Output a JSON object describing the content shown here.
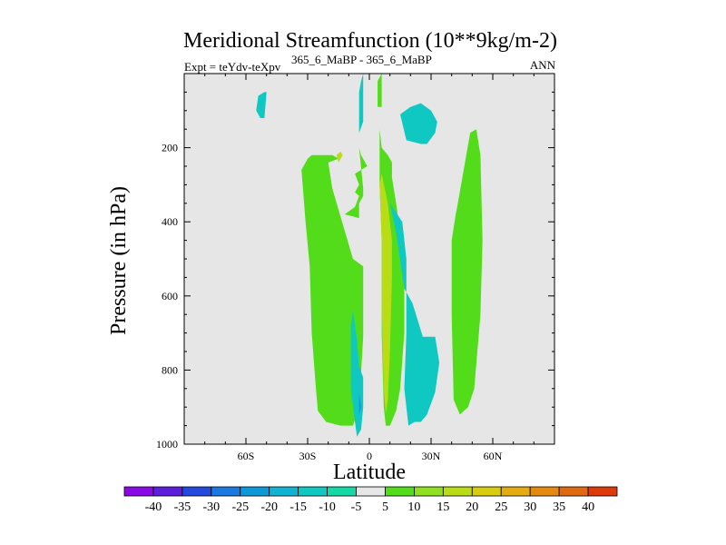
{
  "chart_data": {
    "type": "contour",
    "title": "Meridional Streamfunction (10**9kg/m-2)",
    "subtitle_left": "Expt = teYdv-teXpv",
    "subtitle_super": "365_6_MaBP - 365_6_MaBP",
    "subtitle_right": "ANN",
    "xlabel": "Latitude",
    "ylabel": "Pressure (in hPa)",
    "xlim": [
      -90,
      90
    ],
    "ylim": [
      1000,
      0
    ],
    "x_ticks": [
      {
        "value": -60,
        "label": "60S"
      },
      {
        "value": -30,
        "label": "30S"
      },
      {
        "value": 0,
        "label": "0"
      },
      {
        "value": 30,
        "label": "30N"
      },
      {
        "value": 60,
        "label": "60N"
      }
    ],
    "y_ticks": [
      {
        "value": 200,
        "label": "200"
      },
      {
        "value": 400,
        "label": "400"
      },
      {
        "value": 600,
        "label": "600"
      },
      {
        "value": 800,
        "label": "800"
      },
      {
        "value": 1000,
        "label": "1000"
      }
    ],
    "colorbar": {
      "labels": [
        "-40",
        "-35",
        "-30",
        "-25",
        "-20",
        "-15",
        "-10",
        "-5",
        "5",
        "10",
        "15",
        "20",
        "25",
        "30",
        "35",
        "40"
      ],
      "colors": [
        "#8a0ae6",
        "#5c1ed8",
        "#2348dc",
        "#1a78e0",
        "#0d98d8",
        "#10b4d2",
        "#10c8c2",
        "#16d8a4",
        "#e6e6e6",
        "#52dc1a",
        "#8ee020",
        "#b8dc16",
        "#d8cc10",
        "#e4ac10",
        "#e48a10",
        "#e06a12",
        "#dc3a0a"
      ]
    },
    "regions": [
      {
        "name": "sh-polar-cell",
        "level": "-10",
        "color": "#10c8c2",
        "poly": [
          [
            -54,
            -6
          ],
          [
            -51,
            -5
          ],
          [
            -50,
            -5
          ],
          [
            -51,
            -12
          ],
          [
            -53,
            -12
          ],
          [
            -55,
            -10
          ]
        ]
      },
      {
        "name": "sh-ferrel-cell",
        "level": "5",
        "color": "#52dc1a",
        "poly": [
          [
            -30,
            -23
          ],
          [
            -28,
            -22
          ],
          [
            -18,
            -22
          ],
          [
            -15,
            -23
          ],
          [
            -20,
            -24
          ],
          [
            -18,
            -31
          ],
          [
            -8,
            -50
          ],
          [
            -3,
            -52
          ],
          [
            -3,
            -71
          ],
          [
            -5,
            -90
          ],
          [
            -8,
            -95
          ],
          [
            -14,
            -95
          ],
          [
            -21,
            -94
          ],
          [
            -25,
            -91
          ],
          [
            -26,
            -85
          ],
          [
            -28,
            -70
          ],
          [
            -29,
            -52
          ],
          [
            -31,
            -40
          ],
          [
            -33,
            -26
          ]
        ]
      },
      {
        "name": "tropical-upper-cell",
        "level": "5",
        "color": "#52dc1a",
        "poly": [
          [
            -3,
            -31
          ],
          [
            -5,
            -20
          ],
          [
            -4,
            -22
          ],
          [
            -1,
            -25
          ],
          [
            -7,
            -27
          ],
          [
            -5,
            -30
          ],
          [
            -7,
            -32
          ],
          [
            -5,
            -33
          ],
          [
            -7,
            -36
          ],
          [
            -12,
            -38
          ],
          [
            -5,
            -39
          ],
          [
            -5,
            -35
          ],
          [
            -3,
            -33
          ]
        ]
      },
      {
        "name": "hadley-cell",
        "level": "5",
        "color": "#52dc1a",
        "poly": [
          [
            5,
            -15
          ],
          [
            6,
            -20
          ],
          [
            9,
            -22
          ],
          [
            11,
            -24
          ],
          [
            11,
            -28
          ],
          [
            13,
            -35
          ],
          [
            15,
            -43
          ],
          [
            17,
            -58
          ],
          [
            17,
            -70
          ],
          [
            15,
            -85
          ],
          [
            13,
            -91
          ],
          [
            10,
            -95
          ],
          [
            8,
            -95
          ],
          [
            7,
            -90
          ],
          [
            6,
            -70
          ],
          [
            6,
            -55
          ],
          [
            6,
            -45
          ],
          [
            5,
            -30
          ]
        ]
      },
      {
        "name": "hadley-core",
        "level": "15",
        "color": "#b8dc16",
        "poly": [
          [
            5,
            -30
          ],
          [
            6,
            -27
          ],
          [
            9,
            -35
          ],
          [
            11,
            -45
          ],
          [
            11,
            -55
          ],
          [
            10,
            -75
          ],
          [
            9,
            -88
          ],
          [
            8,
            -92
          ],
          [
            7,
            -85
          ],
          [
            6,
            -65
          ],
          [
            6,
            -45
          ]
        ]
      },
      {
        "name": "nh-ferrel-cell",
        "level": "5",
        "color": "#52dc1a",
        "poly": [
          [
            42,
            -38
          ],
          [
            43,
            -35
          ],
          [
            49,
            -16
          ],
          [
            52,
            -15
          ],
          [
            54,
            -22
          ],
          [
            55,
            -45
          ],
          [
            54,
            -65
          ],
          [
            51,
            -85
          ],
          [
            48,
            -90
          ],
          [
            44,
            -92
          ],
          [
            41,
            -88
          ],
          [
            40,
            -65
          ],
          [
            40,
            -45
          ]
        ]
      },
      {
        "name": "nh-tropical-cell",
        "level": "-10",
        "color": "#10c8c2",
        "poly": [
          [
            10,
            -35
          ],
          [
            13,
            -43
          ],
          [
            17,
            -58
          ],
          [
            21,
            -62
          ],
          [
            26,
            -71
          ],
          [
            28,
            -71
          ],
          [
            32,
            -71
          ],
          [
            34,
            -78
          ],
          [
            32,
            -86
          ],
          [
            28,
            -92
          ],
          [
            25,
            -94
          ],
          [
            22,
            -94
          ],
          [
            19,
            -95
          ],
          [
            18,
            -90
          ],
          [
            17,
            -85
          ],
          [
            18,
            -70
          ],
          [
            18,
            -55
          ],
          [
            18,
            -50
          ],
          [
            16,
            -40
          ]
        ]
      },
      {
        "name": "nh-upper-cell",
        "level": "-10",
        "color": "#10c8c2",
        "poly": [
          [
            15,
            -11
          ],
          [
            20,
            -9
          ],
          [
            25,
            -8
          ],
          [
            30,
            -10
          ],
          [
            33,
            -13
          ],
          [
            32,
            -16
          ],
          [
            28,
            -19
          ],
          [
            25,
            -19
          ],
          [
            18,
            -18
          ]
        ]
      },
      {
        "name": "equatorial-upper-cell",
        "level": "-10",
        "color": "#10c8c2",
        "poly": [
          [
            -4,
            -2
          ],
          [
            -3,
            0
          ],
          [
            -3,
            -13
          ],
          [
            -5,
            -16
          ],
          [
            -5,
            -12
          ],
          [
            -5,
            -5
          ]
        ]
      },
      {
        "name": "sh-lower-cell",
        "level": "-10",
        "color": "#10c8c2",
        "poly": [
          [
            -9,
            -68
          ],
          [
            -8,
            -64
          ],
          [
            -6,
            -72
          ],
          [
            -5,
            -79
          ],
          [
            -3,
            -82
          ],
          [
            -3,
            -90
          ],
          [
            -4,
            -96
          ],
          [
            -6,
            -98
          ],
          [
            -7,
            -94
          ],
          [
            -9,
            -85
          ],
          [
            -9,
            -75
          ]
        ]
      },
      {
        "name": "sh-lower-core",
        "level": "-15",
        "color": "#0d98d8",
        "poly": [
          [
            -5,
            -84
          ],
          [
            -5,
            -86
          ],
          [
            -4,
            -90
          ],
          [
            -5,
            -92
          ]
        ]
      },
      {
        "name": "equatorial-column",
        "level": "5",
        "color": "#52dc1a",
        "poly": [
          [
            4,
            -2
          ],
          [
            6,
            0
          ],
          [
            6,
            -9
          ],
          [
            4,
            -9
          ]
        ]
      },
      {
        "name": "sh-spot",
        "level": "15",
        "color": "#b8dc16",
        "poly": [
          [
            -16,
            -22
          ],
          [
            -14,
            -21
          ],
          [
            -13,
            -22
          ],
          [
            -14,
            -23
          ],
          [
            -15,
            -24
          ]
        ]
      }
    ]
  }
}
